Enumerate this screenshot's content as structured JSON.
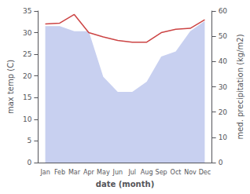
{
  "chart_data": {
    "type": "line",
    "xlabel": "date (month)",
    "ylabel": "max temp (C)",
    "y2label": "med. precipitation (kg/m2)",
    "categories": [
      "Jan",
      "Feb",
      "Mar",
      "Apr",
      "May",
      "Jun",
      "Jul",
      "Aug",
      "Sep",
      "Oct",
      "Nov",
      "Dec"
    ],
    "series": [
      {
        "type": "area",
        "axis": "y2",
        "color": "#c8d0f0",
        "values": [
          54,
          54,
          52,
          52,
          34,
          28,
          28,
          32,
          42,
          44,
          52,
          56
        ]
      },
      {
        "type": "line",
        "color": "#cc4444",
        "values": [
          32.0,
          32.2,
          34.2,
          30.0,
          29.0,
          28.2,
          27.8,
          27.8,
          30.0,
          30.8,
          31.0,
          33.0
        ]
      }
    ],
    "ylim": [
      0,
      35
    ],
    "yticks": [
      0,
      5,
      10,
      15,
      20,
      25,
      30,
      35
    ],
    "y2lim": [
      0,
      60
    ],
    "y2ticks": [
      0,
      10,
      20,
      30,
      40,
      50,
      60
    ],
    "grid": false
  }
}
